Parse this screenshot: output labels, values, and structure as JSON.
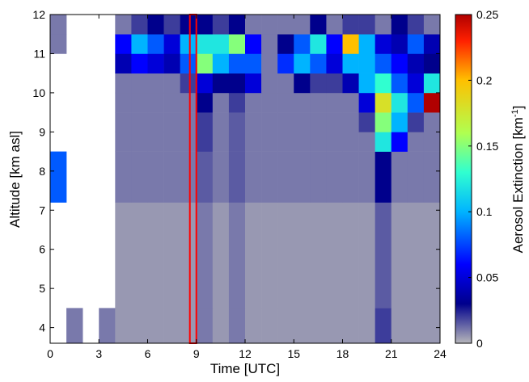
{
  "chart_data": {
    "type": "heatmap",
    "xlabel": "Time [UTC]",
    "ylabel": "Altitude [km asl]",
    "xlim": [
      0,
      24
    ],
    "xticks": [
      0,
      3,
      6,
      9,
      12,
      15,
      18,
      21,
      24
    ],
    "ylim": [
      3.6,
      12
    ],
    "yticks": [
      4,
      5,
      6,
      7,
      8,
      9,
      10,
      11,
      12
    ],
    "xbins": [
      0,
      1,
      2,
      3,
      4,
      5,
      6,
      7,
      8,
      9,
      10,
      11,
      12,
      13,
      14,
      15,
      16,
      17,
      18,
      19,
      20,
      21,
      22,
      23,
      24
    ],
    "ybins": [
      3.6,
      4.5,
      7.2,
      8.5,
      9,
      9.5,
      10,
      10.5,
      11,
      11.5,
      12
    ],
    "z": [
      [
        null,
        0.01,
        null,
        0.01,
        0.005,
        0.005,
        0.005,
        0.005,
        0.005,
        0.01,
        0.005,
        0.01,
        0.005,
        0.005,
        0.005,
        0.005,
        0.005,
        0.005,
        0.005,
        0.005,
        0.02,
        0.005,
        0.005,
        0.005
      ],
      [
        null,
        null,
        null,
        null,
        0.005,
        0.005,
        0.005,
        0.005,
        0.005,
        0.01,
        0.005,
        0.01,
        0.005,
        0.005,
        0.005,
        0.005,
        0.005,
        0.005,
        0.005,
        0.005,
        0.015,
        0.005,
        0.005,
        0.005
      ],
      [
        0.08,
        null,
        null,
        null,
        0.01,
        0.01,
        0.01,
        0.01,
        0.01,
        0.015,
        0.01,
        0.015,
        0.01,
        0.01,
        0.01,
        0.01,
        0.01,
        0.01,
        0.01,
        0.01,
        0.03,
        0.01,
        0.01,
        0.01
      ],
      [
        null,
        null,
        null,
        null,
        0.01,
        0.01,
        0.01,
        0.01,
        0.01,
        0.02,
        0.01,
        0.015,
        0.01,
        0.01,
        0.01,
        0.01,
        0.01,
        0.01,
        0.01,
        0.01,
        0.12,
        0.06,
        0.01,
        0.01
      ],
      [
        null,
        null,
        null,
        null,
        0.01,
        0.01,
        0.01,
        0.01,
        0.01,
        0.02,
        0.01,
        0.015,
        0.01,
        0.01,
        0.01,
        0.01,
        0.01,
        0.01,
        0.01,
        0.02,
        0.15,
        0.1,
        0.02,
        0.01
      ],
      [
        null,
        null,
        null,
        null,
        0.01,
        0.01,
        0.01,
        0.01,
        0.01,
        0.03,
        0.01,
        0.02,
        0.01,
        0.01,
        0.01,
        0.01,
        0.01,
        0.01,
        0.01,
        0.05,
        0.18,
        0.12,
        0.08,
        0.25
      ],
      [
        null,
        null,
        null,
        null,
        0.01,
        0.01,
        0.01,
        0.01,
        0.02,
        0.05,
        0.03,
        0.03,
        0.05,
        0.01,
        0.01,
        0.03,
        0.02,
        0.02,
        0.04,
        0.1,
        0.13,
        0.08,
        0.05,
        0.12
      ],
      [
        null,
        null,
        null,
        null,
        0.04,
        0.06,
        0.05,
        0.04,
        0.08,
        0.15,
        0.1,
        0.08,
        0.08,
        0.01,
        0.07,
        0.1,
        0.08,
        0.05,
        0.1,
        0.1,
        0.08,
        0.06,
        0.04,
        0.03
      ],
      [
        0.01,
        null,
        null,
        null,
        0.06,
        0.1,
        0.08,
        0.05,
        0.1,
        0.12,
        0.12,
        0.15,
        0.06,
        0.01,
        0.03,
        0.08,
        0.12,
        0.06,
        0.2,
        0.1,
        0.05,
        0.04,
        0.08,
        0.04
      ],
      [
        0.01,
        null,
        null,
        null,
        0.01,
        0.02,
        0.03,
        0.02,
        0.03,
        0.03,
        0.02,
        0.03,
        0.01,
        0.01,
        0.01,
        0.01,
        0.03,
        0.01,
        0.02,
        0.02,
        0.01,
        0.03,
        0.02,
        0.01
      ]
    ],
    "colorlim": [
      0,
      0.25
    ],
    "colorticks": [
      0,
      0.05,
      0.1,
      0.15,
      0.2,
      0.25
    ],
    "colorscale": [
      [
        0,
        "#b6b6ba"
      ],
      [
        0.03,
        "#00008c"
      ],
      [
        0.06,
        "#0000ff"
      ],
      [
        0.1,
        "#00b4ff"
      ],
      [
        0.13,
        "#30ffd0"
      ],
      [
        0.16,
        "#b0ff50"
      ],
      [
        0.2,
        "#ffc000"
      ],
      [
        0.23,
        "#ff2000"
      ],
      [
        0.25,
        "#b00000"
      ]
    ],
    "colorbar_label": {
      "text": "Aerosol Extinction [km",
      "superscript": "-1",
      "suffix": "]"
    },
    "highlight": {
      "xrange": [
        8.6,
        9.0
      ],
      "color": "#ff0000"
    }
  }
}
